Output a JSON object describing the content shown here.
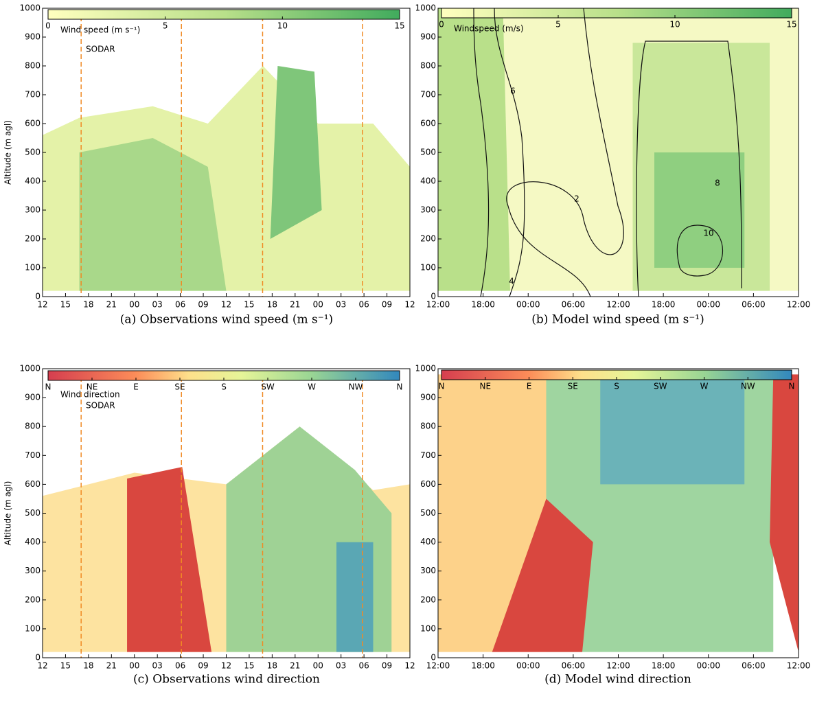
{
  "chart_data": [
    {
      "type": "contour",
      "caption": "(a) Observations wind speed (m s⁻¹)",
      "ylabel": "Altitude (m agl)",
      "categories": [
        "12",
        "15",
        "18",
        "21",
        "00",
        "03",
        "06",
        "09",
        "12",
        "15",
        "18",
        "21",
        "00",
        "03",
        "06",
        "09",
        "12"
      ],
      "ylim": [
        0,
        1000
      ],
      "yticks": [
        0,
        100,
        200,
        300,
        400,
        500,
        600,
        700,
        800,
        900,
        1000
      ],
      "colorbar": {
        "label": "Wind speed (m s⁻¹)",
        "clim": [
          0,
          15
        ],
        "ticks": [
          0,
          5,
          10,
          15
        ]
      },
      "annotations": [
        "SODAR"
      ]
    },
    {
      "type": "contour",
      "caption": "(b) Model wind speed (m s⁻¹)",
      "categories": [
        "12:00",
        "18:00",
        "00:00",
        "06:00",
        "12:00",
        "18:00",
        "00:00",
        "06:00",
        "12:00"
      ],
      "ylim": [
        0,
        1000
      ],
      "yticks": [
        0,
        100,
        200,
        300,
        400,
        500,
        600,
        700,
        800,
        900,
        1000
      ],
      "colorbar": {
        "label": "Windspeed (m/s)",
        "clim": [
          0,
          15
        ],
        "ticks": [
          0,
          5,
          10,
          15
        ]
      },
      "contour_levels": [
        2,
        4,
        6,
        8,
        10
      ]
    },
    {
      "type": "contour",
      "caption": "(c) Observations wind direction",
      "ylabel": "Altitude (m agl)",
      "categories": [
        "12",
        "15",
        "18",
        "21",
        "00",
        "03",
        "06",
        "09",
        "12",
        "15",
        "18",
        "21",
        "00",
        "03",
        "06",
        "09",
        "12"
      ],
      "ylim": [
        0,
        1000
      ],
      "yticks": [
        0,
        100,
        200,
        300,
        400,
        500,
        600,
        700,
        800,
        900,
        1000
      ],
      "colorbar": {
        "labels": [
          "N",
          "NE",
          "E",
          "SE",
          "S",
          "SW",
          "W",
          "NW",
          "N"
        ]
      },
      "annotations": [
        "Wind direction",
        "SODAR"
      ]
    },
    {
      "type": "contour",
      "caption": "(d) Model wind direction",
      "categories": [
        "12:00",
        "18:00",
        "00:00",
        "06:00",
        "12:00",
        "18:00",
        "00:00",
        "06:00",
        "12:00"
      ],
      "ylim": [
        0,
        1000
      ],
      "yticks": [
        0,
        100,
        200,
        300,
        400,
        500,
        600,
        700,
        800,
        900,
        1000
      ],
      "colorbar": {
        "labels": [
          "N",
          "NE",
          "E",
          "SE",
          "S",
          "SW",
          "W",
          "NW",
          "N"
        ]
      }
    }
  ]
}
